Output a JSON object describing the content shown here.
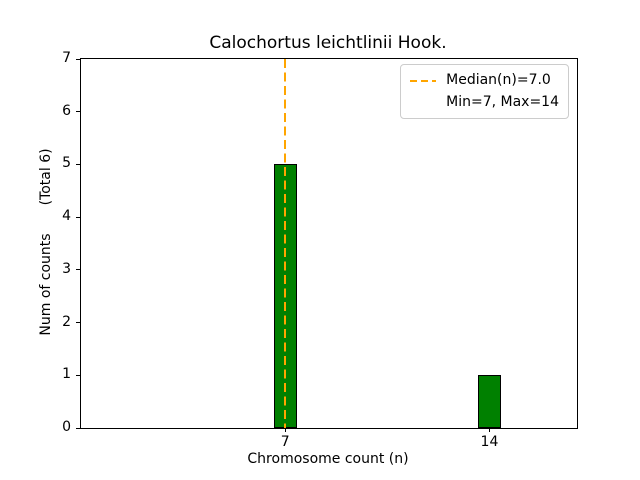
{
  "chart_data": {
    "type": "bar",
    "title": "Calochortus leichtlinii Hook.",
    "xlabel": "Chromosome count (n)",
    "ylabel": "Num of counts",
    "ylabel_note": "(Total 6)",
    "categories": [
      7,
      14
    ],
    "values": [
      5,
      1
    ],
    "bar_color": "#008000",
    "bar_edge_color": "#000000",
    "bar_width": 0.8,
    "xlim": [
      0,
      17
    ],
    "ylim": [
      0,
      7
    ],
    "yticks": [
      0,
      1,
      2,
      3,
      4,
      5,
      6,
      7
    ],
    "grid": false,
    "median_line": {
      "x": 7.0,
      "color": "#FFA500",
      "style": "dashed"
    },
    "legend": [
      {
        "label": "Median(n)=7.0",
        "handle": "dashed-line",
        "color": "#FFA500"
      },
      {
        "label": "Min=7, Max=14",
        "handle": "none"
      }
    ],
    "legend_position": "upper-right"
  }
}
